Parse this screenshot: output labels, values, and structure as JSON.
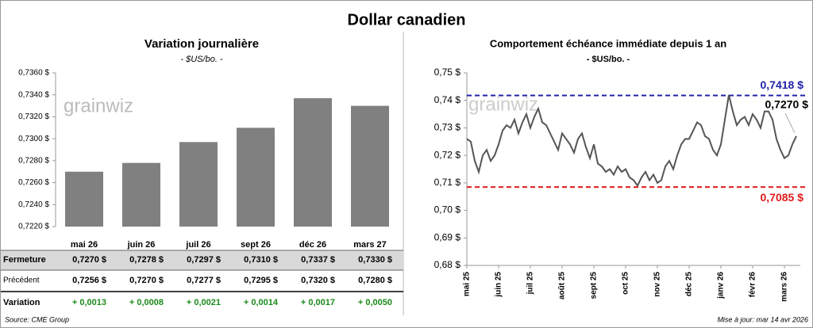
{
  "title": "Dollar canadien",
  "watermark": "grainwiz",
  "chart_data": [
    {
      "type": "bar",
      "title": "Variation journalière",
      "subtitle": "- $US/bo. -",
      "categories": [
        "mai 26",
        "juin 26",
        "juil 26",
        "sept 26",
        "déc 26",
        "mars 27"
      ],
      "values": [
        0.727,
        0.7278,
        0.7297,
        0.731,
        0.7337,
        0.733
      ],
      "color": "#808080",
      "ylim": [
        0.722,
        0.736
      ],
      "yticks": [
        {
          "value": 0.722,
          "label": "0,7220 $"
        },
        {
          "value": 0.724,
          "label": "0,7240 $"
        },
        {
          "value": 0.726,
          "label": "0,7260 $"
        },
        {
          "value": 0.728,
          "label": "0,7280 $"
        },
        {
          "value": 0.73,
          "label": "0,7300 $"
        },
        {
          "value": 0.732,
          "label": "0,7320 $"
        },
        {
          "value": 0.734,
          "label": "0,7340 $"
        },
        {
          "value": 0.736,
          "label": "0,7360 $"
        }
      ]
    },
    {
      "type": "line",
      "title": "Comportement échéance immédiate depuis 1 an",
      "subtitle": "- $US/bo. -",
      "categories": [
        "mai 25",
        null,
        null,
        null,
        null,
        null,
        null,
        null,
        "juin 25",
        null,
        null,
        null,
        null,
        null,
        null,
        null,
        "juil 25",
        null,
        null,
        null,
        null,
        null,
        null,
        null,
        "août 25",
        null,
        null,
        null,
        null,
        null,
        null,
        null,
        "sept 25",
        null,
        null,
        null,
        null,
        null,
        null,
        null,
        "oct 25",
        null,
        null,
        null,
        null,
        null,
        null,
        null,
        "nov 25",
        null,
        null,
        null,
        null,
        null,
        null,
        null,
        "déc 25",
        null,
        null,
        null,
        null,
        null,
        null,
        null,
        "janv 26",
        null,
        null,
        null,
        null,
        null,
        null,
        null,
        "févr 26",
        null,
        null,
        null,
        null,
        null,
        null,
        null,
        "mars 26",
        null,
        null,
        null
      ],
      "values": [
        0.726,
        0.725,
        0.718,
        0.714,
        0.72,
        0.722,
        0.718,
        0.72,
        0.724,
        0.729,
        0.731,
        0.73,
        0.733,
        0.728,
        0.732,
        0.735,
        0.73,
        0.734,
        0.737,
        0.732,
        0.731,
        0.728,
        0.725,
        0.722,
        0.728,
        0.726,
        0.724,
        0.721,
        0.726,
        0.728,
        0.723,
        0.719,
        0.724,
        0.717,
        0.716,
        0.714,
        0.715,
        0.713,
        0.716,
        0.714,
        0.715,
        0.712,
        0.711,
        0.709,
        0.712,
        0.714,
        0.711,
        0.713,
        0.71,
        0.711,
        0.716,
        0.718,
        0.715,
        0.72,
        0.724,
        0.726,
        0.726,
        0.729,
        0.732,
        0.731,
        0.727,
        0.726,
        0.722,
        0.72,
        0.724,
        0.733,
        0.742,
        0.736,
        0.731,
        0.733,
        0.734,
        0.731,
        0.735,
        0.733,
        0.73,
        0.736,
        0.736,
        0.733,
        0.726,
        0.722,
        0.719,
        0.72,
        0.724,
        0.727
      ],
      "color": "#555555",
      "last_label": "0,7270 $",
      "reference_lines": [
        {
          "value": 0.7418,
          "label": "0,7418 $",
          "color": "#2222aa"
        },
        {
          "value": 0.7085,
          "label": "0,7085 $",
          "color": "#e01b1b"
        }
      ],
      "ylim": [
        0.68,
        0.75
      ],
      "yticks": [
        {
          "value": 0.68,
          "label": "0,68 $"
        },
        {
          "value": 0.69,
          "label": "0,69 $"
        },
        {
          "value": 0.7,
          "label": "0,70 $"
        },
        {
          "value": 0.71,
          "label": "0,71 $"
        },
        {
          "value": 0.72,
          "label": "0,72 $"
        },
        {
          "value": 0.73,
          "label": "0,73 $"
        },
        {
          "value": 0.74,
          "label": "0,74 $"
        },
        {
          "value": 0.75,
          "label": "0,75 $"
        }
      ]
    }
  ],
  "table": {
    "rows": [
      {
        "label": "Fermeture",
        "cells": [
          "0,7270 $",
          "0,7278 $",
          "0,7297 $",
          "0,7310 $",
          "0,7337 $",
          "0,7330 $"
        ]
      },
      {
        "label": "Précédent",
        "cells": [
          "0,7256 $",
          "0,7270 $",
          "0,7277 $",
          "0,7295 $",
          "0,7320 $",
          "0,7280 $"
        ]
      },
      {
        "label": "Variation",
        "cells": [
          "+ 0,0013",
          "+ 0,0008",
          "+ 0,0021",
          "+ 0,0014",
          "+ 0,0017",
          "+ 0,0050"
        ]
      }
    ]
  },
  "source": "Source: CME Group",
  "updated": "Mise à jour: mar 14 avr 2026"
}
